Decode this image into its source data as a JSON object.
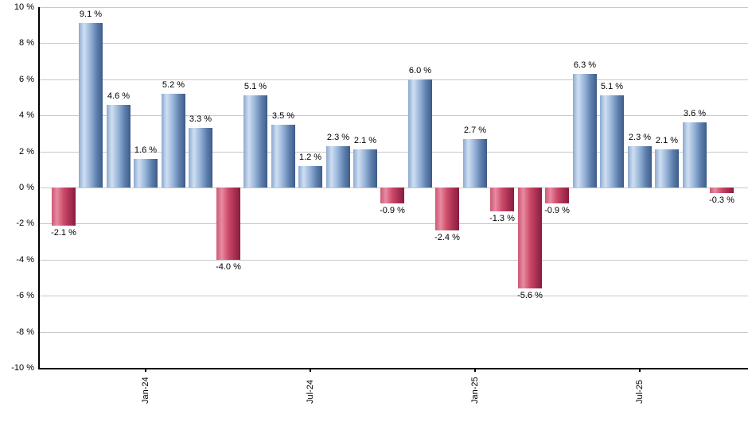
{
  "chart_data": {
    "type": "bar",
    "title": "",
    "xlabel": "",
    "ylabel": "",
    "ylim": [
      -10,
      10
    ],
    "grid": "horizontal-gray-lines",
    "legend": "none",
    "values": [
      -2.1,
      9.1,
      4.6,
      1.6,
      5.2,
      3.3,
      -4.0,
      5.1,
      3.5,
      1.2,
      2.3,
      2.1,
      -0.9,
      6.0,
      -2.4,
      2.7,
      -1.3,
      -5.6,
      -0.9,
      6.3,
      5.1,
      2.3,
      2.1,
      3.6,
      -0.3
    ],
    "bar_labels": [
      "-2.1 %",
      "9.1 %",
      "4.6 %",
      "1.6 %",
      "5.2 %",
      "3.3 %",
      "-4.0 %",
      "5.1 %",
      "3.5 %",
      "1.2 %",
      "2.3 %",
      "2.1 %",
      "-0.9 %",
      "6.0 %",
      "-2.4 %",
      "2.7 %",
      "-1.3 %",
      "-5.6 %",
      "-0.9 %",
      "6.3 %",
      "5.1 %",
      "2.3 %",
      "2.1 %",
      "3.6 %",
      "-0.3 %"
    ],
    "x_ticks": [
      {
        "bar_index": 3,
        "label": "Jan-24"
      },
      {
        "bar_index": 9,
        "label": "Jul-24"
      },
      {
        "bar_index": 15,
        "label": "Jan-25"
      },
      {
        "bar_index": 21,
        "label": "Jul-25"
      }
    ],
    "y_ticks": {
      "values": [
        10,
        8,
        6,
        4,
        2,
        0,
        -2,
        -4,
        -6,
        -8,
        -10
      ],
      "labels": [
        "10 %",
        "8 %",
        "6 %",
        "4 %",
        "2 %",
        "0 %",
        "-2 %",
        "-4 %",
        "-6 %",
        "-8 %",
        "-10 %"
      ]
    },
    "colors": {
      "positive_bar_gradient": [
        "#8ca9cf",
        "#cfdff2",
        "#93b1d6",
        "#5f80ae",
        "#3d5c88"
      ],
      "negative_bar_gradient": [
        "#cb5874",
        "#e88ba2",
        "#cc4a68",
        "#a93154",
        "#8a1c3e"
      ],
      "gridline": "#c9c9c9",
      "axis": "#000000",
      "label_text": "#000000"
    }
  }
}
